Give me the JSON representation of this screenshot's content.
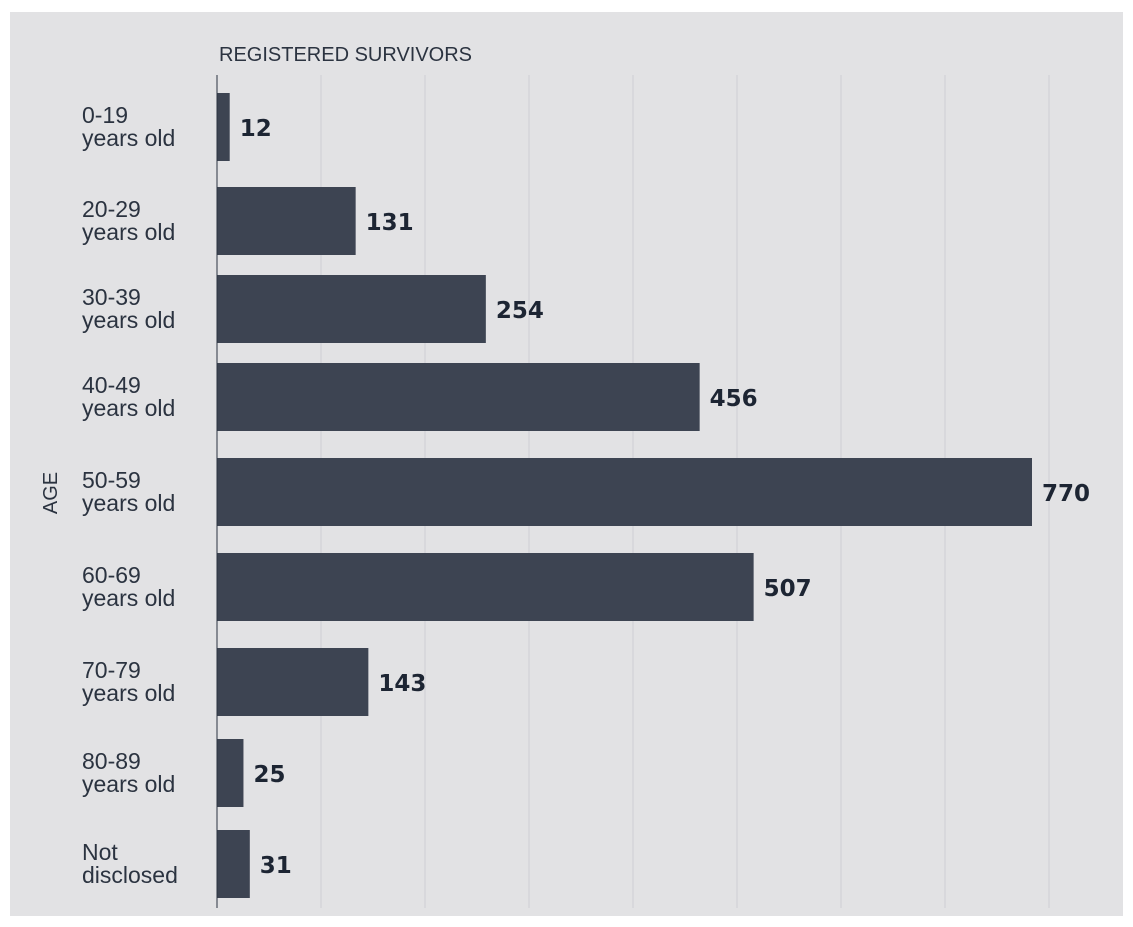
{
  "chart_data": {
    "type": "bar",
    "orientation": "horizontal",
    "xlabel": "REGISTERED SURVIVORS",
    "ylabel": "AGE",
    "categories": [
      [
        "0-19",
        "years old"
      ],
      [
        "20-29",
        "years old"
      ],
      [
        "30-39",
        "years old"
      ],
      [
        "40-49",
        "years old"
      ],
      [
        "50-59",
        "years old"
      ],
      [
        "60-69",
        "years old"
      ],
      [
        "70-79",
        "years old"
      ],
      [
        "80-89",
        "years old"
      ],
      [
        "Not",
        "disclosed"
      ]
    ],
    "values": [
      12,
      131,
      254,
      456,
      770,
      507,
      143,
      25,
      31
    ],
    "xlim": [
      0,
      790
    ],
    "grid": true,
    "colors": {
      "bar": "#3d4452",
      "grid": "#cfcfd3",
      "axis": "#2b3340",
      "background": "#e2e2e4"
    }
  }
}
